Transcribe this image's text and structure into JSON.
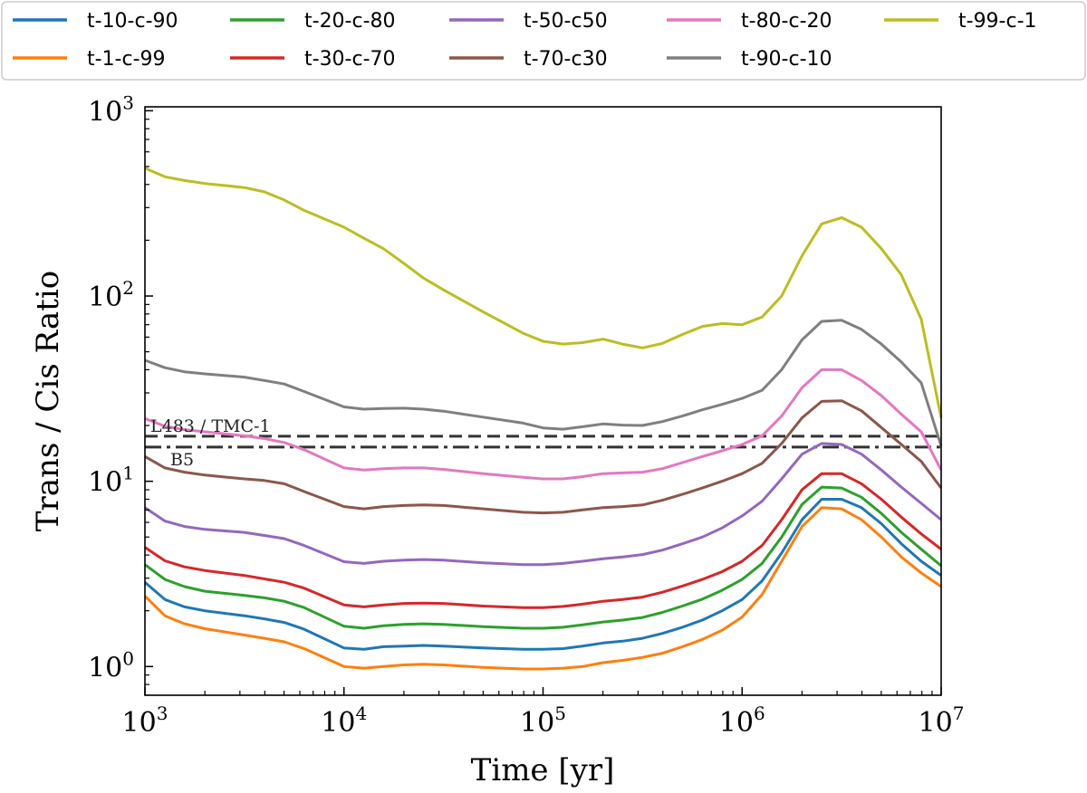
{
  "chart_data": {
    "type": "line",
    "title": "",
    "xlabel": "Time [yr]",
    "ylabel": "Trans / Cis Ratio",
    "xscale": "log",
    "yscale": "log",
    "xlim": [
      1000,
      10000000
    ],
    "ylim": [
      0.7,
      1050
    ],
    "grid": false,
    "legend_position": "top",
    "x_ticks": [
      {
        "mantissa": "10",
        "exponent": "3",
        "value": 1000
      },
      {
        "mantissa": "10",
        "exponent": "4",
        "value": 10000
      },
      {
        "mantissa": "10",
        "exponent": "5",
        "value": 100000
      },
      {
        "mantissa": "10",
        "exponent": "6",
        "value": 1000000
      },
      {
        "mantissa": "10",
        "exponent": "7",
        "value": 10000000
      }
    ],
    "y_ticks": [
      {
        "mantissa": "10",
        "exponent": "0",
        "value": 1
      },
      {
        "mantissa": "10",
        "exponent": "1",
        "value": 10
      },
      {
        "mantissa": "10",
        "exponent": "2",
        "value": 100
      },
      {
        "mantissa": "10",
        "exponent": "3",
        "value": 1000
      }
    ],
    "x": [
      1000,
      1260,
      1580,
      2000,
      3160,
      3980,
      5010,
      6310,
      10000,
      12600,
      15800,
      20000,
      25100,
      31600,
      50100,
      79400,
      100000,
      126000,
      158000,
      200000,
      251000,
      316000,
      398000,
      501000,
      631000,
      794000,
      1000000,
      1260000,
      1580000,
      2000000,
      2510000,
      3160000,
      3980000,
      5010000,
      6310000,
      7940000,
      10000000
    ],
    "series": [
      {
        "name": "t-10-c-90",
        "color": "#1f77b4",
        "values": [
          2.85,
          2.3,
          2.1,
          2.0,
          1.88,
          1.81,
          1.73,
          1.59,
          1.26,
          1.24,
          1.28,
          1.29,
          1.3,
          1.29,
          1.26,
          1.24,
          1.24,
          1.25,
          1.29,
          1.34,
          1.37,
          1.42,
          1.51,
          1.63,
          1.78,
          2.0,
          2.3,
          2.9,
          4.1,
          6.2,
          8.0,
          8.0,
          7.2,
          5.9,
          4.6,
          3.7,
          3.1
        ]
      },
      {
        "name": "t-1-c-99",
        "color": "#ff7f0e",
        "values": [
          2.4,
          1.88,
          1.7,
          1.6,
          1.48,
          1.42,
          1.36,
          1.25,
          1.0,
          0.98,
          1.0,
          1.02,
          1.03,
          1.02,
          0.99,
          0.97,
          0.97,
          0.98,
          1.0,
          1.05,
          1.08,
          1.12,
          1.18,
          1.28,
          1.4,
          1.57,
          1.85,
          2.45,
          3.7,
          5.7,
          7.2,
          7.1,
          6.2,
          5.0,
          3.9,
          3.2,
          2.7
        ]
      },
      {
        "name": "t-20-c-80",
        "color": "#2ca02c",
        "values": [
          3.55,
          2.95,
          2.7,
          2.55,
          2.42,
          2.35,
          2.25,
          2.08,
          1.65,
          1.61,
          1.66,
          1.69,
          1.7,
          1.69,
          1.64,
          1.61,
          1.61,
          1.63,
          1.68,
          1.74,
          1.78,
          1.84,
          1.96,
          2.12,
          2.31,
          2.58,
          2.95,
          3.6,
          5.0,
          7.5,
          9.3,
          9.2,
          8.2,
          6.7,
          5.3,
          4.3,
          3.5
        ]
      },
      {
        "name": "t-30-c-70",
        "color": "#d62728",
        "values": [
          4.4,
          3.72,
          3.45,
          3.3,
          3.1,
          2.97,
          2.85,
          2.65,
          2.15,
          2.1,
          2.15,
          2.19,
          2.2,
          2.19,
          2.12,
          2.08,
          2.08,
          2.11,
          2.17,
          2.25,
          2.3,
          2.37,
          2.52,
          2.72,
          2.95,
          3.25,
          3.7,
          4.5,
          6.2,
          9.0,
          11.0,
          11.0,
          9.7,
          8.0,
          6.4,
          5.2,
          4.3
        ]
      },
      {
        "name": "t-50-c50",
        "color": "#9467bd",
        "values": [
          7.2,
          6.1,
          5.7,
          5.5,
          5.3,
          5.1,
          4.9,
          4.5,
          3.68,
          3.6,
          3.7,
          3.75,
          3.78,
          3.75,
          3.63,
          3.55,
          3.55,
          3.6,
          3.7,
          3.82,
          3.9,
          4.02,
          4.25,
          4.6,
          5.0,
          5.6,
          6.5,
          7.8,
          10.3,
          14.0,
          16.0,
          15.8,
          14.0,
          11.5,
          9.3,
          7.6,
          6.2
        ]
      },
      {
        "name": "t-70-c30",
        "color": "#8c564b",
        "values": [
          13.6,
          11.8,
          11.2,
          10.8,
          10.3,
          10.1,
          9.7,
          8.8,
          7.3,
          7.1,
          7.3,
          7.4,
          7.45,
          7.4,
          7.1,
          6.8,
          6.75,
          6.8,
          7.0,
          7.2,
          7.3,
          7.45,
          7.9,
          8.5,
          9.2,
          10.0,
          11.0,
          12.5,
          16.0,
          22.0,
          27.0,
          27.2,
          24.0,
          19.5,
          15.8,
          12.8,
          9.2
        ]
      },
      {
        "name": "t-80-c-20",
        "color": "#e377c2",
        "values": [
          21.8,
          19.8,
          19.0,
          18.5,
          17.6,
          17.0,
          16.2,
          14.8,
          11.8,
          11.5,
          11.7,
          11.8,
          11.8,
          11.6,
          11.0,
          10.5,
          10.3,
          10.3,
          10.6,
          11.0,
          11.1,
          11.2,
          11.7,
          12.6,
          13.6,
          14.6,
          15.8,
          17.6,
          22.5,
          32.0,
          40.0,
          40.0,
          35.0,
          29.0,
          23.0,
          18.5,
          11.5
        ]
      },
      {
        "name": "t-90-c-10",
        "color": "#7f7f7f",
        "values": [
          45.0,
          41.0,
          39.0,
          38.0,
          36.5,
          35.0,
          33.5,
          30.5,
          25.2,
          24.5,
          24.7,
          24.8,
          24.5,
          23.9,
          22.2,
          20.6,
          19.4,
          19.1,
          19.7,
          20.4,
          20.1,
          20.0,
          21.0,
          22.5,
          24.3,
          26.0,
          28.0,
          31.0,
          40.0,
          58.0,
          73.0,
          74.0,
          66.0,
          55.0,
          44.0,
          34.0,
          15.5
        ]
      },
      {
        "name": "t-99-c-1",
        "color": "#bcbd22",
        "values": [
          490.0,
          440.0,
          420.0,
          405.0,
          385.0,
          365.0,
          330.0,
          290.0,
          235.0,
          205.0,
          180.0,
          150.0,
          125.0,
          108.0,
          82.0,
          63.0,
          57.0,
          55.0,
          56.0,
          58.5,
          55.0,
          52.5,
          55.5,
          62.0,
          68.5,
          71.0,
          70.0,
          77.0,
          100.0,
          165.0,
          245.0,
          265.0,
          235.0,
          180.0,
          130.0,
          75.0,
          22.0
        ]
      }
    ],
    "reference_lines": [
      {
        "label": "L483 / TMC-1",
        "value": 17.5,
        "style": "dashed",
        "color": "#333333"
      },
      {
        "label": "B5",
        "value": 15.3,
        "style": "dashdot",
        "color": "#333333"
      }
    ]
  }
}
